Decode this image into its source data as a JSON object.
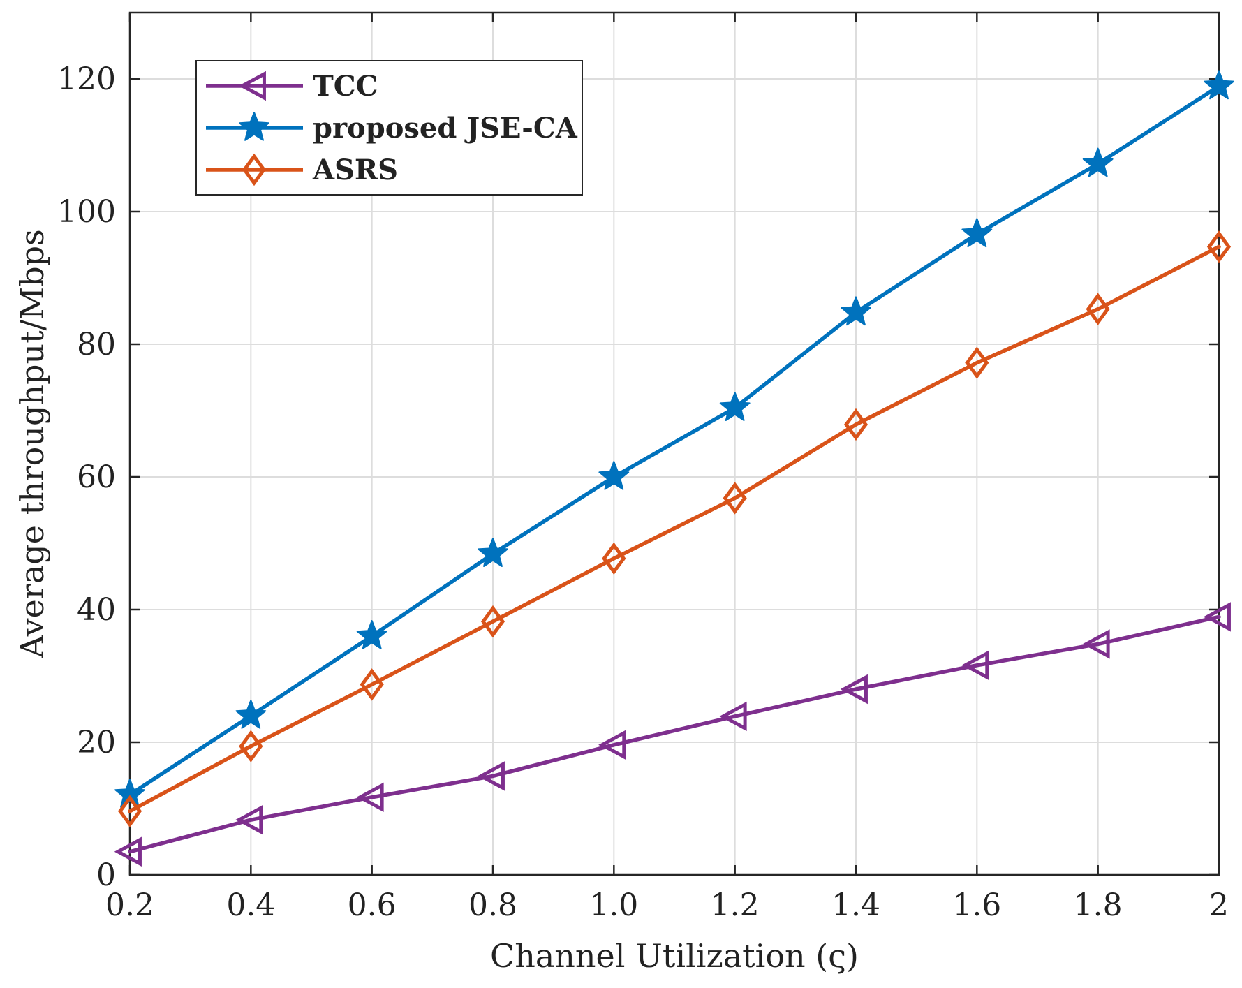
{
  "chart_data": {
    "type": "line",
    "title": "",
    "xlabel": "Channel Utilization (ς)",
    "ylabel": "Average throughput/Mbps",
    "x": [
      0.2,
      0.4,
      0.6,
      0.8,
      1.0,
      1.2,
      1.4,
      1.6,
      1.8,
      2.0
    ],
    "xlim": [
      0.2,
      2.0
    ],
    "ylim": [
      0,
      130
    ],
    "xticks": [
      0.2,
      0.4,
      0.6,
      0.8,
      1.0,
      1.2,
      1.4,
      1.6,
      1.8,
      2.0
    ],
    "xtick_labels": [
      "0.2",
      "0.4",
      "0.6",
      "0.8",
      "1.0",
      "1.2",
      "1.4",
      "1.6",
      "1.8",
      "2"
    ],
    "yticks": [
      0,
      20,
      40,
      60,
      80,
      100,
      120
    ],
    "ytick_labels": [
      "0",
      "20",
      "40",
      "60",
      "80",
      "100",
      "120"
    ],
    "grid": true,
    "legend_position": "top-left",
    "series": [
      {
        "name": "TCC",
        "marker": "triangle-left",
        "color": "#7E2F8E",
        "values": [
          3.5,
          8.3,
          11.7,
          14.9,
          19.6,
          23.9,
          28.0,
          31.6,
          34.8,
          38.9
        ]
      },
      {
        "name": "proposed JSE-CA",
        "marker": "star",
        "color": "#0072BD",
        "values": [
          12.1,
          24.0,
          36.0,
          48.4,
          60.0,
          70.4,
          84.8,
          96.6,
          107.2,
          118.9
        ]
      },
      {
        "name": "ASRS",
        "marker": "diamond",
        "color": "#D95319",
        "values": [
          9.6,
          19.4,
          28.7,
          38.2,
          47.7,
          56.8,
          67.9,
          77.2,
          85.3,
          94.7
        ]
      }
    ]
  }
}
